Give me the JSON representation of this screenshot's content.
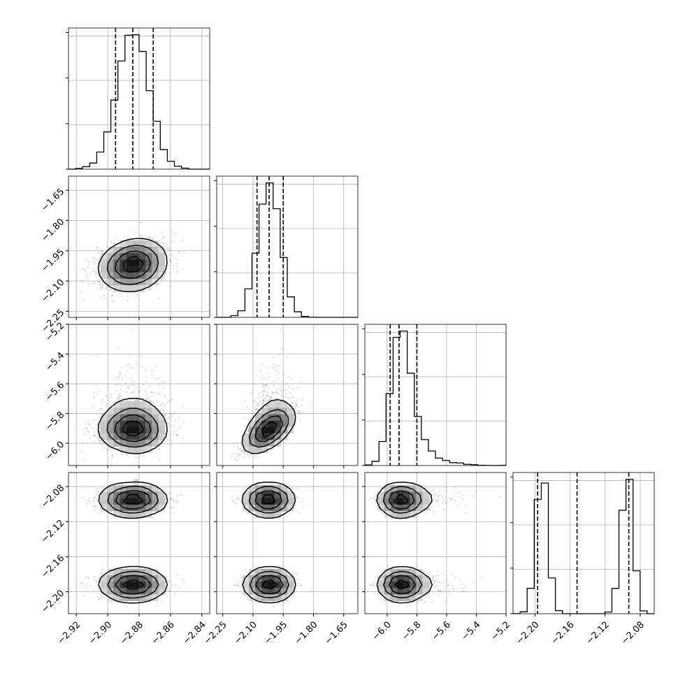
{
  "chart_data": {
    "type": "corner",
    "description_of_parameters": "4 parameters, unlabeled",
    "params": [
      {
        "xlim": [
          -2.925,
          -2.835
        ],
        "xticks": [
          -2.92,
          -2.9,
          -2.88,
          -2.86,
          -2.84
        ],
        "xtick_labels": [
          "−2.92",
          "−2.90",
          "−2.88",
          "−2.86",
          "−2.84"
        ],
        "mean": -2.884,
        "sd": 0.0102,
        "quantiles": [
          -2.895,
          -2.884,
          -2.871
        ]
      },
      {
        "xlim": [
          -2.28,
          -1.58
        ],
        "xticks": [
          -2.25,
          -2.1,
          -1.95,
          -1.8,
          -1.65
        ],
        "xtick_labels": [
          "−2.25",
          "−2.10",
          "−1.95",
          "−1.80",
          "−1.65"
        ],
        "mean": -2.02,
        "sd": 0.055,
        "quantiles": [
          -2.08,
          -2.02,
          -1.95
        ]
      },
      {
        "xlim": [
          -6.15,
          -5.2
        ],
        "xticks": [
          -6.0,
          -5.8,
          -5.6,
          -5.4,
          -5.2
        ],
        "xtick_labels": [
          "−6.0",
          "−5.8",
          "−5.6",
          "−5.4",
          "−5.2"
        ],
        "mean": -5.92,
        "sd": 0.06,
        "quantiles": [
          -5.98,
          -5.92,
          -5.8
        ]
      },
      {
        "xlim": [
          -2.225,
          -2.064
        ],
        "xticks": [
          -2.2,
          -2.16,
          -2.12,
          -2.08
        ],
        "xtick_labels": [
          "−2.20",
          "−2.16",
          "−2.12",
          "−2.08"
        ],
        "modes": [
          -2.192,
          -2.095
        ],
        "mode_sd": 0.0065,
        "quantiles": [
          -2.197,
          -2.152,
          -2.093
        ]
      }
    ],
    "ylabels": {
      "row1": {
        "ticks": [
          -2.25,
          -2.1,
          -1.95,
          -1.8,
          -1.65
        ],
        "labels": [
          "−2.25",
          "−2.10",
          "−1.95",
          "−1.80",
          "−1.65"
        ]
      },
      "row2": {
        "ticks": [
          -6.0,
          -5.8,
          -5.6,
          -5.4,
          -5.2
        ],
        "labels": [
          "−6.0",
          "−5.8",
          "−5.6",
          "−5.4",
          "−5.2"
        ]
      },
      "row3": {
        "ticks": [
          -2.2,
          -2.16,
          -2.12,
          -2.08
        ],
        "labels": [
          "−2.20",
          "−2.16",
          "−2.12",
          "−2.08"
        ]
      }
    },
    "histogram_bins": 20,
    "contour_levels": 4,
    "grid": true,
    "colors": {
      "ink": "#000000",
      "grid": "#b0b0b0",
      "points": "#555555",
      "background": "#ffffff"
    }
  }
}
